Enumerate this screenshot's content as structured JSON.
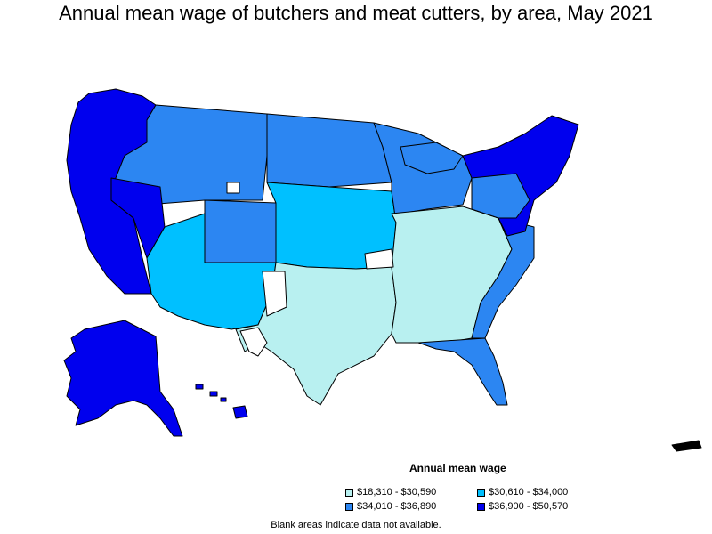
{
  "title": "Annual mean wage of butchers and meat cutters, by area, May 2021",
  "legend": {
    "title": "Annual mean wage",
    "items": [
      {
        "label": "$18,310 - $30,590",
        "color": "#b8f0f0"
      },
      {
        "label": "$30,610 - $34,000",
        "color": "#00c0ff"
      },
      {
        "label": "$34,010 - $36,890",
        "color": "#2c86f2"
      },
      {
        "label": "$36,900 - $50,570",
        "color": "#0000ee"
      }
    ]
  },
  "note": "Blank areas indicate data not available.",
  "colors": {
    "outline": "#000000",
    "no_data": "#ffffff"
  }
}
